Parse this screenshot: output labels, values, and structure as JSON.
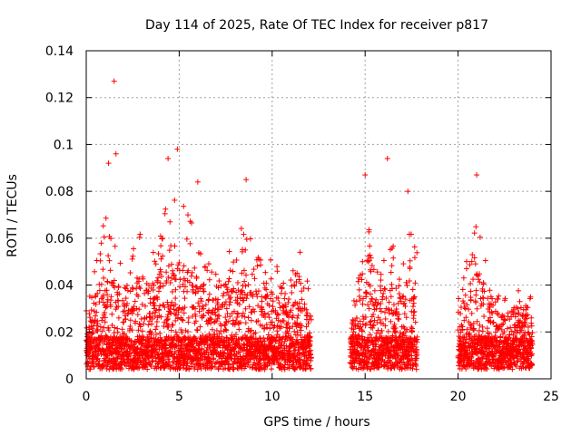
{
  "chart_data": {
    "type": "scatter",
    "title": "Day 114 of 2025, Rate Of TEC Index for receiver p817",
    "xlabel": "GPS time / hours",
    "ylabel": "ROTI / TECUs",
    "xlim": [
      0,
      25
    ],
    "ylim": [
      0,
      0.14
    ],
    "xticks": [
      "0",
      "5",
      "10",
      "15",
      "20",
      "25"
    ],
    "xtick_values": [
      0,
      5,
      10,
      15,
      20,
      25
    ],
    "yticks": [
      "0",
      "0.02",
      "0.04",
      "0.06",
      "0.08",
      "0.1",
      "0.12",
      "0.14"
    ],
    "ytick_values": [
      0,
      0.02,
      0.04,
      0.06,
      0.08,
      0.1,
      0.12,
      0.14
    ],
    "grid": true,
    "marker": "+",
    "color": "#ff0000",
    "data_segments_hours": [
      [
        0,
        12.1
      ],
      [
        14.2,
        17.8
      ],
      [
        20.0,
        24.0
      ]
    ],
    "notable_points": [
      {
        "x": 1.5,
        "y": 0.127
      },
      {
        "x": 1.6,
        "y": 0.096
      },
      {
        "x": 1.2,
        "y": 0.092
      },
      {
        "x": 4.9,
        "y": 0.098
      },
      {
        "x": 4.4,
        "y": 0.094
      },
      {
        "x": 16.2,
        "y": 0.094
      },
      {
        "x": 15.0,
        "y": 0.087
      },
      {
        "x": 21.0,
        "y": 0.087
      },
      {
        "x": 8.6,
        "y": 0.085
      },
      {
        "x": 6.0,
        "y": 0.084
      },
      {
        "x": 17.3,
        "y": 0.08
      },
      {
        "x": 11.5,
        "y": 0.054
      }
    ],
    "envelope": [
      {
        "x": 0.0,
        "y": 0.03
      },
      {
        "x": 0.5,
        "y": 0.05
      },
      {
        "x": 1.0,
        "y": 0.07
      },
      {
        "x": 1.5,
        "y": 0.06
      },
      {
        "x": 2.0,
        "y": 0.045
      },
      {
        "x": 2.5,
        "y": 0.06
      },
      {
        "x": 3.0,
        "y": 0.065
      },
      {
        "x": 3.5,
        "y": 0.05
      },
      {
        "x": 4.0,
        "y": 0.07
      },
      {
        "x": 4.5,
        "y": 0.075
      },
      {
        "x": 5.0,
        "y": 0.08
      },
      {
        "x": 5.5,
        "y": 0.07
      },
      {
        "x": 6.0,
        "y": 0.065
      },
      {
        "x": 6.5,
        "y": 0.05
      },
      {
        "x": 7.0,
        "y": 0.05
      },
      {
        "x": 7.5,
        "y": 0.06
      },
      {
        "x": 8.0,
        "y": 0.055
      },
      {
        "x": 8.5,
        "y": 0.07
      },
      {
        "x": 9.0,
        "y": 0.06
      },
      {
        "x": 9.5,
        "y": 0.055
      },
      {
        "x": 10.0,
        "y": 0.055
      },
      {
        "x": 10.5,
        "y": 0.045
      },
      {
        "x": 11.0,
        "y": 0.045
      },
      {
        "x": 11.5,
        "y": 0.05
      },
      {
        "x": 12.0,
        "y": 0.04
      },
      {
        "x": 14.3,
        "y": 0.03
      },
      {
        "x": 14.8,
        "y": 0.05
      },
      {
        "x": 15.2,
        "y": 0.065
      },
      {
        "x": 15.7,
        "y": 0.045
      },
      {
        "x": 16.2,
        "y": 0.06
      },
      {
        "x": 16.7,
        "y": 0.055
      },
      {
        "x": 17.2,
        "y": 0.06
      },
      {
        "x": 17.7,
        "y": 0.065
      },
      {
        "x": 20.1,
        "y": 0.04
      },
      {
        "x": 20.5,
        "y": 0.055
      },
      {
        "x": 21.0,
        "y": 0.07
      },
      {
        "x": 21.5,
        "y": 0.05
      },
      {
        "x": 22.0,
        "y": 0.04
      },
      {
        "x": 22.5,
        "y": 0.035
      },
      {
        "x": 23.0,
        "y": 0.04
      },
      {
        "x": 23.5,
        "y": 0.035
      },
      {
        "x": 24.0,
        "y": 0.035
      }
    ]
  }
}
